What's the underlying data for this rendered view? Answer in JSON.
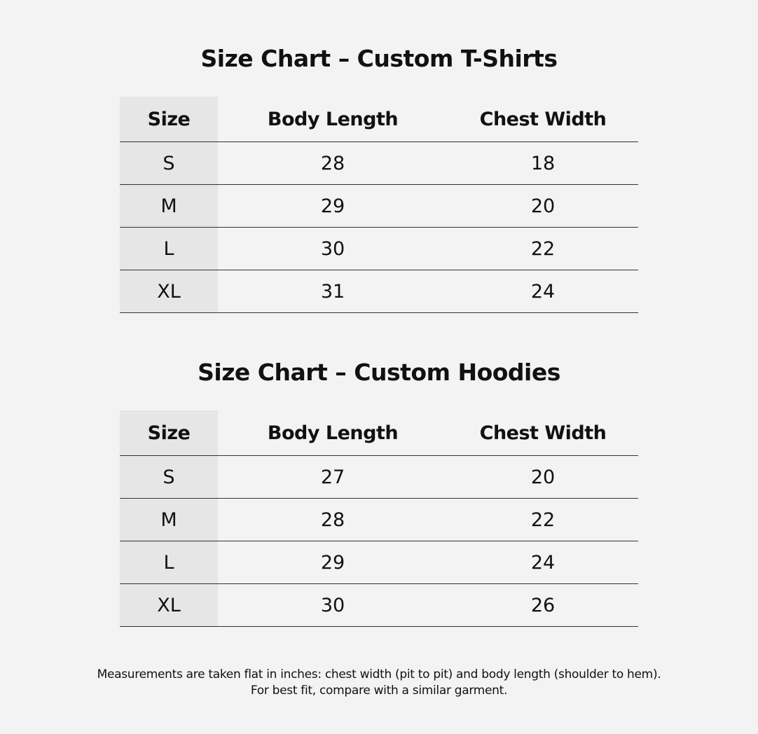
{
  "tables": [
    {
      "title": "Size Chart – Custom T-Shirts",
      "headers": [
        "Size",
        "Body Length",
        "Chest Width"
      ],
      "rows": [
        [
          "S",
          "28",
          "18"
        ],
        [
          "M",
          "29",
          "20"
        ],
        [
          "L",
          "30",
          "22"
        ],
        [
          "XL",
          "31",
          "24"
        ]
      ]
    },
    {
      "title": "Size Chart – Custom Hoodies",
      "headers": [
        "Size",
        "Body Length",
        "Chest Width"
      ],
      "rows": [
        [
          "S",
          "27",
          "20"
        ],
        [
          "M",
          "28",
          "22"
        ],
        [
          "L",
          "29",
          "24"
        ],
        [
          "XL",
          "30",
          "26"
        ]
      ]
    }
  ],
  "footer": {
    "line1": "Measurements are taken flat in inches: chest width (pit to pit) and body length (shoulder to hem).",
    "line2": "For best fit, compare with a similar garment."
  },
  "colors": {
    "background": "#f3f3f3",
    "size_column": "#e6e6e6",
    "rule": "#333333"
  }
}
